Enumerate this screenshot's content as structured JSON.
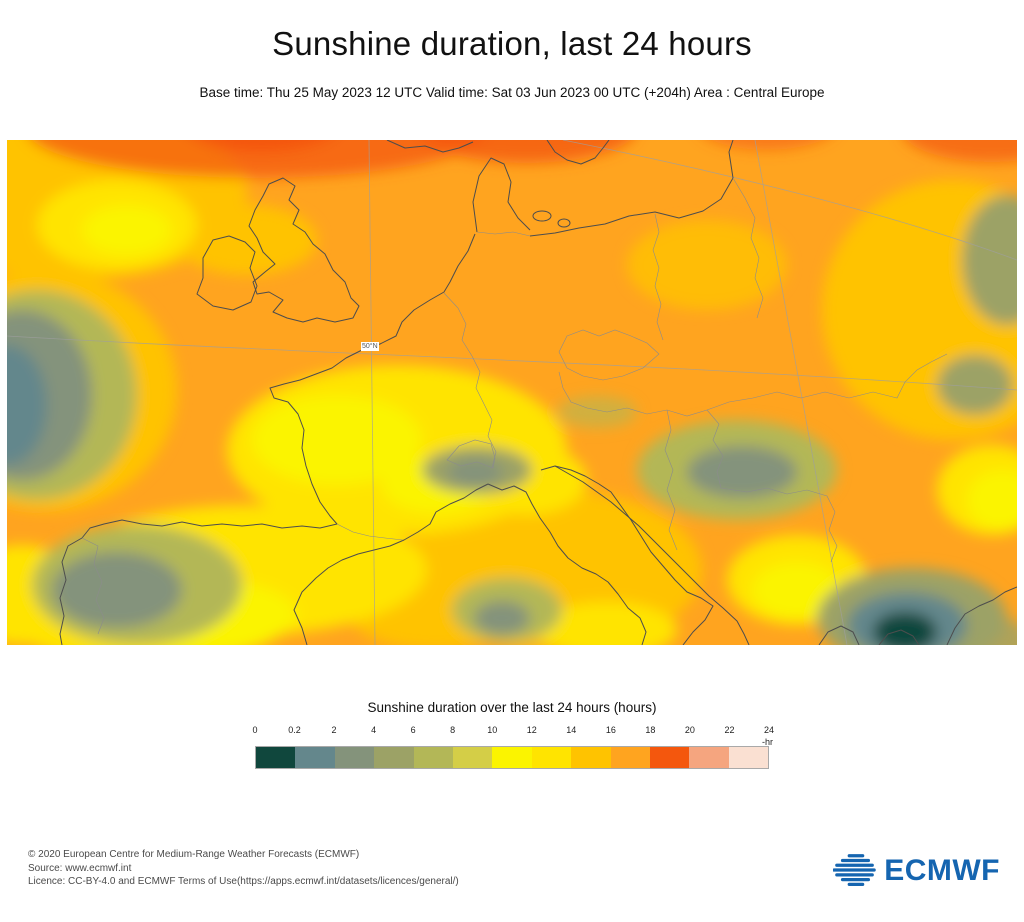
{
  "header": {
    "title": "Sunshine duration, last 24 hours",
    "subtitle": "Base time: Thu 25 May 2023 12 UTC Valid time: Sat 03 Jun 2023 00 UTC (+204h) Area : Central Europe"
  },
  "chart_data": {
    "type": "heatmap",
    "title": "Sunshine duration over the last 24 hours (hours)",
    "units_label": "-hr",
    "legend_ticks": [
      "0",
      "0.2",
      "2",
      "4",
      "6",
      "8",
      "10",
      "12",
      "14",
      "16",
      "18",
      "20",
      "22",
      "24"
    ],
    "legend_colors": [
      "#10473D",
      "#64878C",
      "#84937B",
      "#9CA266",
      "#B3B757",
      "#D4CE47",
      "#FBF400",
      "#FFE400",
      "#FFC300",
      "#FFA41F",
      "#F4570D",
      "#F5A57F",
      "#FAE0D2"
    ],
    "legend_range": [
      0,
      24
    ],
    "base_time": "Thu 25 May 2023 12 UTC",
    "valid_time": "Sat 03 Jun 2023 00 UTC (+204h)",
    "lead_time": "+204h",
    "area": "Central Europe",
    "latitude_label": "50°N",
    "map_reading": [
      {
        "region": "Most of central Europe, North Sea and Baltic",
        "sunshine_hours": "14-18"
      },
      {
        "region": "Scandinavia along northern map edge",
        "sunshine_hours": "18-20"
      },
      {
        "region": "France, Iberia and scattered central patches",
        "sunshine_hours": "10-14"
      },
      {
        "region": "Atlantic west edge, NW Iberia, Alps, central Balkans, Sardinia area",
        "sunshine_hours": "2-8"
      },
      {
        "region": "Southern Balkans / NW Greece dark spot",
        "sunshine_hours": "0-2"
      }
    ]
  },
  "footer": {
    "copyright": "© 2020 European Centre for Medium-Range Weather Forecasts (ECMWF)",
    "source": "Source: www.ecmwf.int",
    "licence": "Licence: CC-BY-4.0 and ECMWF Terms of Use(https://apps.ecmwf.int/datasets/licences/general/)"
  },
  "logo": {
    "text": "ECMWF",
    "color": "#1565b0"
  }
}
